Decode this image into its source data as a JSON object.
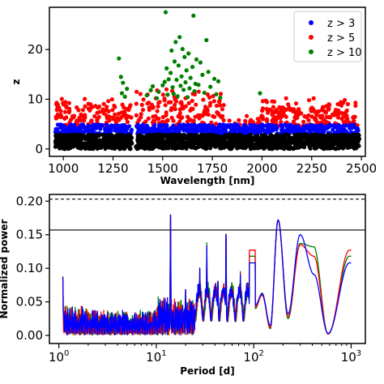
{
  "chart_data": [
    {
      "type": "scatter",
      "xlabel": "Wavelength [nm]",
      "ylabel": "z",
      "xlim": [
        930,
        2520
      ],
      "ylim": [
        -1.5,
        28.5
      ],
      "xticks": [
        1000,
        1250,
        1500,
        1750,
        2000,
        2250,
        2500
      ],
      "yticks": [
        0,
        10,
        20
      ],
      "legend": {
        "placement": "top-right"
      },
      "series": [
        {
          "name": "z > 3",
          "color": "#0000ff",
          "range": [
            3,
            5
          ]
        },
        {
          "name": "z > 5",
          "color": "#ff0000",
          "range": [
            5,
            10
          ]
        },
        {
          "name": "z > 10",
          "color": "#008000",
          "range": [
            10,
            28
          ]
        }
      ],
      "below_threshold": {
        "color": "#000000",
        "range": [
          0,
          3
        ]
      },
      "data_extent": {
        "x": [
          960,
          2490
        ],
        "gap": [
          1345,
          1365
        ]
      },
      "green_points": [
        [
          1280,
          18.2
        ],
        [
          1290,
          14.5
        ],
        [
          1300,
          13.3
        ],
        [
          1310,
          10.5
        ],
        [
          1295,
          11.2
        ],
        [
          1320,
          12.1
        ],
        [
          1420,
          10.8
        ],
        [
          1440,
          11.8
        ],
        [
          1450,
          12.6
        ],
        [
          1470,
          10.2
        ],
        [
          1480,
          11.5
        ],
        [
          1500,
          12.8
        ],
        [
          1510,
          13.5
        ],
        [
          1515,
          27.5
        ],
        [
          1520,
          16.2
        ],
        [
          1525,
          10.9
        ],
        [
          1530,
          14.0
        ],
        [
          1540,
          15.3
        ],
        [
          1545,
          19.8
        ],
        [
          1550,
          12.4
        ],
        [
          1555,
          11.1
        ],
        [
          1560,
          17.6
        ],
        [
          1565,
          21.5
        ],
        [
          1570,
          13.9
        ],
        [
          1575,
          10.6
        ],
        [
          1580,
          16.8
        ],
        [
          1585,
          22.5
        ],
        [
          1590,
          12.7
        ],
        [
          1595,
          14.6
        ],
        [
          1600,
          20.1
        ],
        [
          1605,
          11.9
        ],
        [
          1610,
          18.5
        ],
        [
          1615,
          13.4
        ],
        [
          1620,
          15.8
        ],
        [
          1625,
          10.4
        ],
        [
          1630,
          19.2
        ],
        [
          1635,
          12.2
        ],
        [
          1640,
          14.3
        ],
        [
          1650,
          16.5
        ],
        [
          1655,
          26.8
        ],
        [
          1660,
          11.6
        ],
        [
          1665,
          13.1
        ],
        [
          1670,
          18.0
        ],
        [
          1680,
          12.9
        ],
        [
          1690,
          17.4
        ],
        [
          1700,
          14.9
        ],
        [
          1710,
          11.3
        ],
        [
          1720,
          21.9
        ],
        [
          1730,
          15.5
        ],
        [
          1740,
          12.5
        ],
        [
          1760,
          14.1
        ],
        [
          1770,
          11.0
        ],
        [
          1780,
          13.6
        ],
        [
          1790,
          10.3
        ],
        [
          1990,
          11.2
        ]
      ]
    },
    {
      "type": "line",
      "xlabel": "Period [d]",
      "ylabel": "Normalized power",
      "xscale": "log",
      "xlim": [
        0.8,
        1400
      ],
      "ylim": [
        -0.012,
        0.21
      ],
      "xtick_labels": [
        "10^0",
        "10^1",
        "10^2",
        "10^3"
      ],
      "xticks": [
        1,
        10,
        100,
        1000
      ],
      "yticks": [
        0.0,
        0.05,
        0.1,
        0.15,
        0.2
      ],
      "ytick_labels": [
        "0.00",
        "0.05",
        "0.10",
        "0.15",
        "0.20"
      ],
      "hlines": [
        {
          "y": 0.157,
          "style": "solid",
          "color": "#000000"
        },
        {
          "y": 0.203,
          "style": "dashed",
          "color": "#000000"
        }
      ],
      "series": [
        {
          "color": "#008000",
          "order": 1
        },
        {
          "color": "#ff0000",
          "order": 2
        },
        {
          "color": "#0000ff",
          "order": 3
        }
      ],
      "period_range": [
        1.1,
        1000
      ],
      "peaks": [
        {
          "x": 1.1,
          "y": [
            0.078,
            0.075,
            0.077
          ]
        },
        {
          "x": 14,
          "y": [
            0.186,
            0.186,
            0.186
          ]
        },
        {
          "x": 20,
          "y": [
            0.06,
            0.06,
            0.06
          ]
        },
        {
          "x": 28,
          "y": [
            0.097,
            0.095,
            0.098
          ]
        },
        {
          "x": 33,
          "y": [
            0.13,
            0.12,
            0.125
          ]
        },
        {
          "x": 43,
          "y": [
            0.082,
            0.08,
            0.082
          ]
        },
        {
          "x": 52,
          "y": [
            0.166,
            0.165,
            0.165
          ]
        },
        {
          "x": 73,
          "y": [
            0.09,
            0.088,
            0.085
          ]
        },
        {
          "x": 122,
          "y": [
            0.063,
            0.06,
            0.062
          ]
        },
        {
          "x": 178,
          "y": [
            0.172,
            0.171,
            0.172
          ]
        },
        {
          "x": 300,
          "y": [
            0.137,
            0.135,
            0.15
          ]
        },
        {
          "x": 415,
          "y": [
            0.132,
            0.118,
            0.091
          ]
        },
        {
          "x": 960,
          "y": [
            0.118,
            0.127,
            0.108
          ]
        }
      ],
      "troughs": [
        {
          "x": 104,
          "y": [
            0.04,
            0.042,
            0.045
          ]
        },
        {
          "x": 148,
          "y": [
            0.01,
            0.012,
            0.015
          ]
        },
        {
          "x": 225,
          "y": [
            0.025,
            0.028,
            0.032
          ]
        },
        {
          "x": 580,
          "y": [
            0.002,
            0.002,
            0.003
          ]
        }
      ]
    }
  ]
}
